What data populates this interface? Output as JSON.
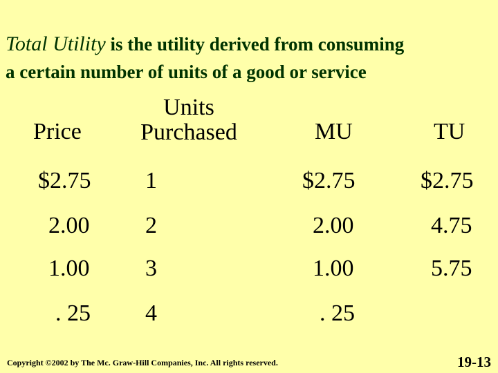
{
  "title": {
    "term": "Total Utility",
    "line1_rest": " is the utility derived from consuming",
    "line2": "a certain number of units of a good or service"
  },
  "table": {
    "headers": {
      "price": "Price",
      "units_line1": "Units",
      "units_line2": "Purchased",
      "mu": "MU",
      "tu": "TU"
    },
    "rows": [
      {
        "price": "$2.75",
        "units": "1",
        "mu": "$2.75",
        "tu": "$2.75"
      },
      {
        "price": "2.00",
        "units": "2",
        "mu": "2.00",
        "tu": "4.75"
      },
      {
        "price": "1.00",
        "units": "3",
        "mu": "1.00",
        "tu": "5.75"
      },
      {
        "price": ". 25",
        "units": "4",
        "mu": ". 25",
        "tu": ""
      }
    ]
  },
  "footer": {
    "copyright": "Copyright ©2002 by The Mc. Graw-Hill Companies, Inc.  All rights reserved.",
    "slide_number": "19-13"
  },
  "colors": {
    "background": "#FFFFAA",
    "title_text": "#003300",
    "body_text": "#000000"
  }
}
